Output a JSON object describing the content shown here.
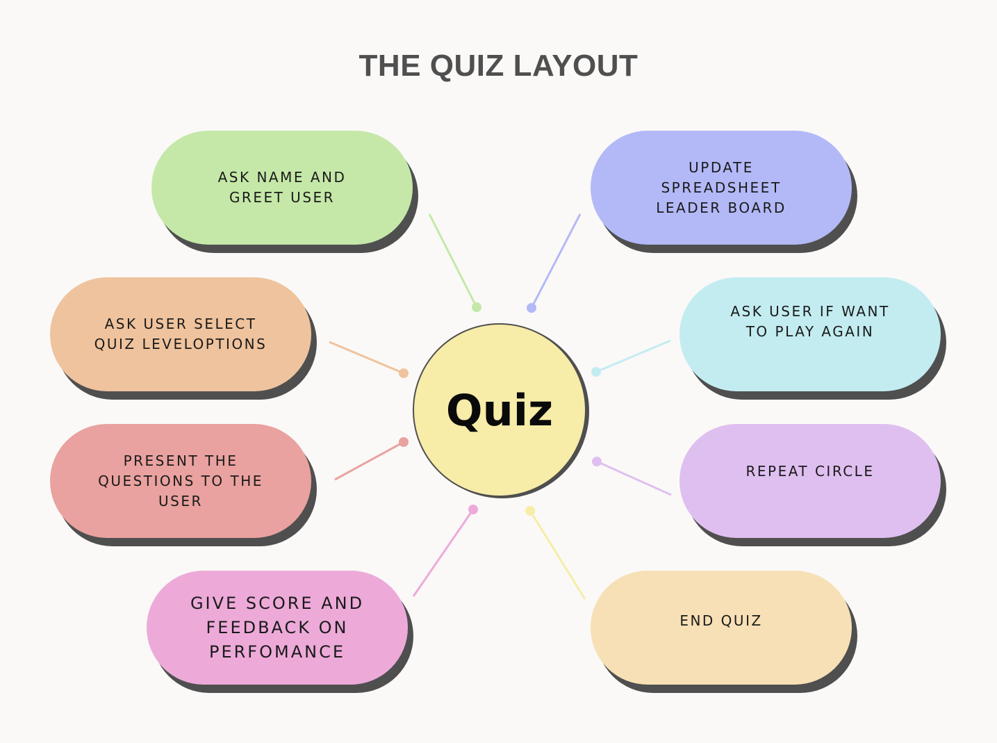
{
  "title": "THE QUIZ LAYOUT",
  "hub": {
    "label": "Quiz",
    "color": "#f7eca8"
  },
  "nodes": [
    {
      "id": "ask-name",
      "label": "ASK NAME AND\nGREET USER",
      "color": "#c5e8a8",
      "line_color": "#c5e8a8"
    },
    {
      "id": "select-level",
      "label": "ASK USER SELECT\nQUIZ LEVELOPTIONS",
      "color": "#efc39d",
      "line_color": "#efc39d"
    },
    {
      "id": "present-questions",
      "label": "PRESENT THE\nQUESTIONS TO THE\nUSER",
      "color": "#e9a29f",
      "line_color": "#e9a29f"
    },
    {
      "id": "give-score",
      "label": "GIVE  SCORE AND\nFEEDBACK ON\nPERFOMANCE",
      "color": "#edaad9",
      "line_color": "#edaad9"
    },
    {
      "id": "update-spreadsheet",
      "label": "UPDATE\nSPREADSHEET\nLEADER BOARD",
      "color": "#b3b9f7",
      "line_color": "#b3b9f7"
    },
    {
      "id": "play-again",
      "label": "ASK USER IF WANT\nTO PLAY AGAIN",
      "color": "#c3ecf1",
      "line_color": "#c3ecf1"
    },
    {
      "id": "repeat-circle",
      "label": "REPEAT CIRCLE",
      "color": "#dfbff0",
      "line_color": "#dfbff0"
    },
    {
      "id": "end-quiz",
      "label": "END QUIZ",
      "color": "#f7e0b5",
      "line_color": "#f7eda5"
    }
  ],
  "colors": {
    "background": "#faf9f7",
    "shadow": "#4f4f4f",
    "title": "#4f4f4f"
  }
}
